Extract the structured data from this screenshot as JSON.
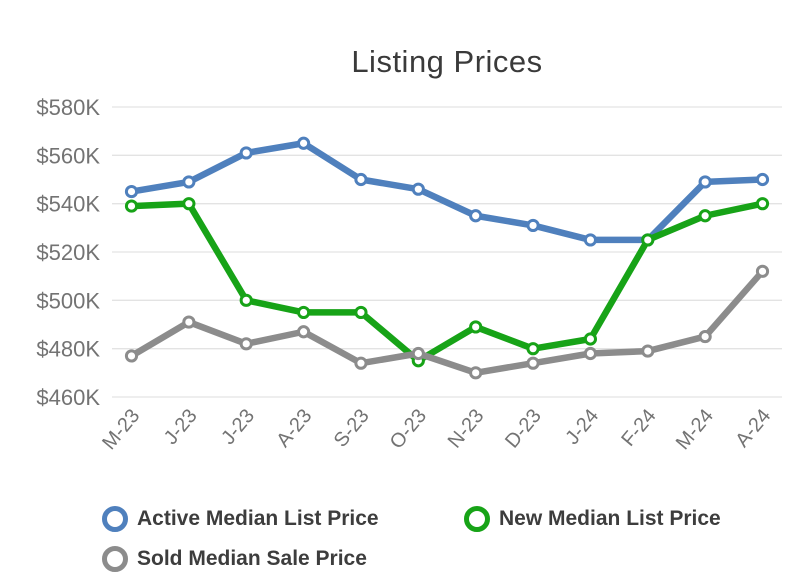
{
  "chart_data": {
    "type": "line",
    "title": "Listing Prices",
    "categories": [
      "M-23",
      "J-23",
      "J-23",
      "A-23",
      "S-23",
      "O-23",
      "N-23",
      "D-23",
      "J-24",
      "F-24",
      "M-24",
      "A-24"
    ],
    "series": [
      {
        "name": "Active Median List Price",
        "color": "#4f80bd",
        "values": [
          545,
          549,
          561,
          565,
          550,
          546,
          535,
          531,
          525,
          525,
          549,
          550
        ]
      },
      {
        "name": "New Median List Price",
        "color": "#17a317",
        "values": [
          539,
          540,
          500,
          495,
          495,
          475,
          489,
          480,
          484,
          525,
          535,
          540
        ]
      },
      {
        "name": "Sold Median Sale Price",
        "color": "#8c8c8c",
        "values": [
          477,
          491,
          482,
          487,
          474,
          478,
          470,
          474,
          478,
          479,
          485,
          512
        ]
      }
    ],
    "xlabel": "",
    "ylabel": "",
    "ylim": [
      460,
      580
    ],
    "yticks": [
      460,
      480,
      500,
      520,
      540,
      560,
      580
    ],
    "ytick_labels": [
      "$460K",
      "$480K",
      "$500K",
      "$520K",
      "$540K",
      "$560K",
      "$580K"
    ],
    "grid": "horizontal",
    "legend_position": "bottom",
    "marker": "open-circle",
    "colors": {
      "gridline": "#e3e3e3",
      "axis_text": "#737373",
      "title_text": "#3a3a3a",
      "legend_text": "#3d3d3d",
      "background": "#ffffff"
    }
  }
}
